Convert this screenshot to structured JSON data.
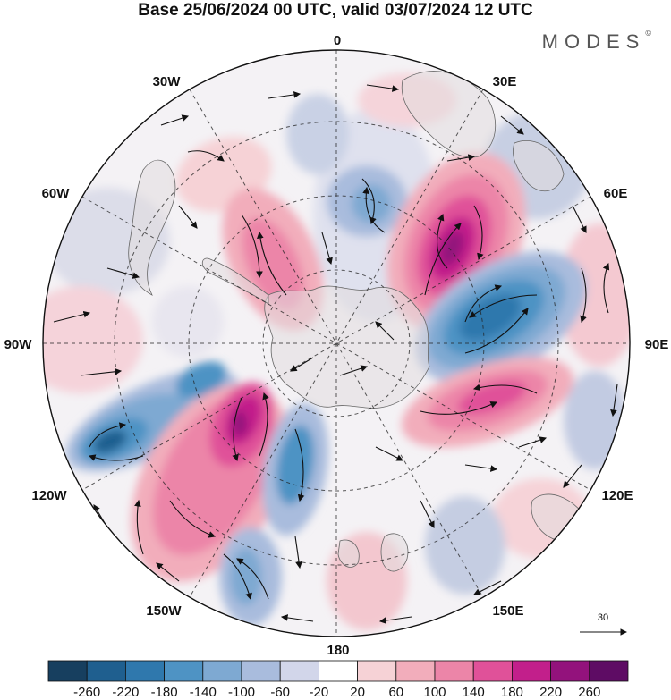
{
  "title": "Base 25/06/2024 00 UTC, valid 03/07/2024 12 UTC",
  "logo": "MODES",
  "logo_mark": "©",
  "longitude_labels": [
    {
      "text": "0",
      "lon": 0
    },
    {
      "text": "30E",
      "lon": 30
    },
    {
      "text": "60E",
      "lon": 60
    },
    {
      "text": "90E",
      "lon": 90
    },
    {
      "text": "120E",
      "lon": 120
    },
    {
      "text": "150E",
      "lon": 150
    },
    {
      "text": "180",
      "lon": 180
    },
    {
      "text": "150W",
      "lon": -150
    },
    {
      "text": "120W",
      "lon": -120
    },
    {
      "text": "90W",
      "lon": -90
    },
    {
      "text": "60W",
      "lon": -60
    },
    {
      "text": "30W",
      "lon": -30
    }
  ],
  "reference_vector": {
    "value": "30"
  },
  "colorbar": {
    "ticks": [
      "-260",
      "-220",
      "-180",
      "-140",
      "-100",
      "-60",
      "-20",
      "20",
      "60",
      "100",
      "140",
      "180",
      "220",
      "260"
    ],
    "colors": [
      "#173f5f",
      "#1f5f8f",
      "#2f78ad",
      "#4e93c4",
      "#7ea9d2",
      "#a9bcdd",
      "#d2d6ea",
      "#ffffff",
      "#f6d2d6",
      "#f2adbb",
      "#ec85a8",
      "#e05199",
      "#c21f8b",
      "#93127c",
      "#5e0c64"
    ]
  },
  "map_data": {
    "projection": "south-polar-stereographic",
    "field": "anomaly",
    "anomalies": [
      {
        "lon": 30,
        "sign": "positive",
        "peak": 240
      },
      {
        "lon": 80,
        "sign": "negative",
        "peak": -240
      },
      {
        "lon": 110,
        "sign": "positive",
        "peak": 180
      },
      {
        "lon": -150,
        "sign": "positive",
        "peak": 220
      },
      {
        "lon": -120,
        "sign": "negative",
        "peak": -240
      },
      {
        "lon": -165,
        "sign": "negative",
        "peak": -140
      },
      {
        "lon": -40,
        "sign": "positive",
        "peak": 120
      },
      {
        "lon": 0,
        "sign": "negative",
        "peak": -100
      }
    ]
  }
}
